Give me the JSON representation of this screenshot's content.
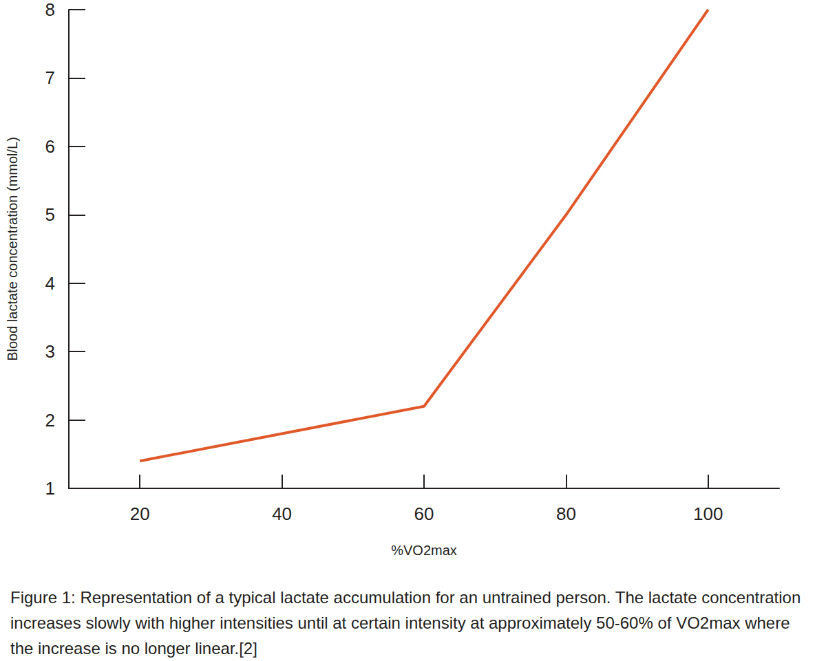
{
  "chart_data": {
    "type": "line",
    "caption": "Figure 1: Representation of a typical lactate accumulation for an untrained person. The lactate concentration increases slowly with higher intensities until at certain intensity at approximately 50-60% of VO2max where the increase is no longer linear.[2]",
    "x_label": "%VO2max",
    "y_label": "Blood lactate concentration (mmol/L)",
    "x": [
      20,
      60,
      80,
      100
    ],
    "values": [
      1.4,
      2.2,
      5.0,
      8.0
    ],
    "color": "#e0592a",
    "xlim": [
      10,
      110
    ],
    "xticks": [
      20,
      40,
      60,
      80,
      100
    ],
    "ylim": [
      1,
      8
    ],
    "yticks": [
      1,
      2,
      3,
      4,
      5,
      6,
      7,
      8
    ],
    "grid": false
  }
}
